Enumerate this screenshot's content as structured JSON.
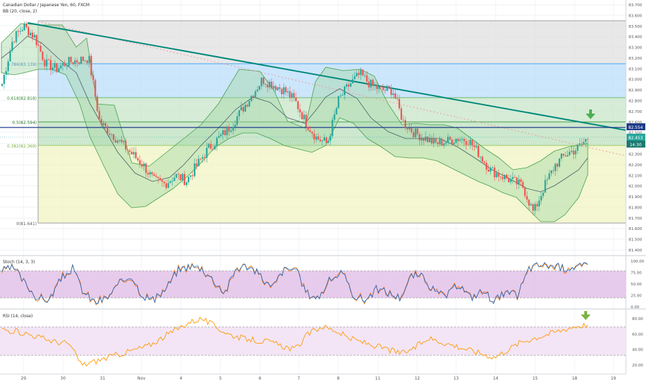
{
  "header": {
    "symbol_title": "Canadian Dollar / Japanese Yen, 60, FXCM",
    "indicator_bb": "BB (20, close, 2)"
  },
  "colors": {
    "up": "#26a69a",
    "down": "#ef5350",
    "bb_fill": "#c8e6c9",
    "bb_line": "#2e7d32",
    "trendline": "#00897b",
    "stoch_fill": "#e1bee7",
    "rsi_fill": "#f3e5f5",
    "rsi_line": "#ff9800",
    "arrow": "#4caf50",
    "price_tag": "#26a69a",
    "hline_tag": "#1e3a8a"
  },
  "fib_levels": [
    {
      "label": "0.786(83.139)",
      "value": 83.139
    },
    {
      "label": "0.618(82.818)",
      "value": 82.818
    },
    {
      "label": "0.5(82.594)",
      "value": 82.594
    },
    {
      "label": "0.382(82.369)",
      "value": 82.369
    },
    {
      "label": "0(81.641)",
      "value": 81.641
    }
  ],
  "price_tags": {
    "hline_value": "82.554",
    "current_price": "82.453",
    "time_left": "14:30"
  },
  "chart_data": [
    {
      "type": "candlestick",
      "series": [
        {
          "name": "CADJPY 60",
          "values": [
            82.96,
            83.38,
            83.5,
            83.4,
            83.15,
            83.1,
            83.16,
            83.18,
            83.2,
            82.6,
            82.5,
            82.4,
            82.3,
            82.2,
            82.05,
            82.02,
            82.1,
            82.05,
            82.2,
            82.35,
            82.45,
            82.55,
            82.7,
            82.85,
            83.0,
            82.95,
            82.9,
            82.8,
            82.6,
            82.45,
            82.4,
            82.8,
            82.95,
            83.05,
            82.95,
            82.9,
            82.9,
            82.6,
            82.5,
            82.45,
            82.4,
            82.42,
            82.45,
            82.43,
            82.3,
            82.15,
            82.1,
            82.05,
            82.0,
            81.75,
            82.0,
            82.2,
            82.3,
            82.35,
            82.45
          ]
        }
      ],
      "title": "Canadian Dollar / Japanese Yen, 60, FXCM",
      "x_tick_labels": [
        "29",
        "30",
        "31",
        "Nov",
        "4",
        "5",
        "6",
        "7",
        "8",
        "11",
        "12",
        "13",
        "14",
        "15",
        "18",
        "19"
      ],
      "y_tick_labels": [
        "83.700",
        "83.600",
        "83.500",
        "83.400",
        "83.300",
        "83.200",
        "83.100",
        "83.000",
        "82.900",
        "82.800",
        "82.700",
        "82.600",
        "82.500",
        "82.400",
        "82.300",
        "82.200",
        "82.100",
        "82.000",
        "81.900",
        "81.800",
        "81.700",
        "81.600",
        "81.500",
        "81.400"
      ],
      "ylim": [
        81.33,
        83.72
      ],
      "grid": true
    },
    {
      "type": "line",
      "title": "Stoch (14, 3, 3)",
      "y_tick_labels": [
        "100.00",
        "75.00",
        "50.00",
        "25.00",
        "0.00"
      ],
      "ylim": [
        0,
        100
      ],
      "series": [
        {
          "values": [
            80,
            85,
            50,
            20,
            15,
            60,
            85,
            30,
            10,
            20,
            50,
            70,
            25,
            15,
            40,
            80,
            90,
            85,
            60,
            30,
            85,
            90,
            70,
            40,
            80,
            85,
            30,
            20,
            60,
            75,
            25,
            15,
            40,
            30,
            20,
            70,
            65,
            30,
            25,
            50,
            20,
            35,
            15,
            30,
            25,
            85,
            92,
            90,
            85,
            88,
            90
          ]
        }
      ]
    },
    {
      "type": "line",
      "title": "RSI (14, close)",
      "y_tick_labels": [
        "80.00",
        "60.00",
        "40.00",
        "20.00"
      ],
      "ylim": [
        12,
        88
      ],
      "series": [
        {
          "values": [
            66,
            64,
            60,
            55,
            50,
            48,
            20,
            25,
            30,
            35,
            40,
            45,
            55,
            65,
            75,
            80,
            70,
            60,
            55,
            52,
            50,
            45,
            40,
            60,
            70,
            65,
            55,
            50,
            45,
            40,
            35,
            42,
            55,
            50,
            45,
            40,
            35,
            30,
            40,
            50,
            55,
            60,
            65,
            70,
            72
          ]
        }
      ]
    }
  ]
}
